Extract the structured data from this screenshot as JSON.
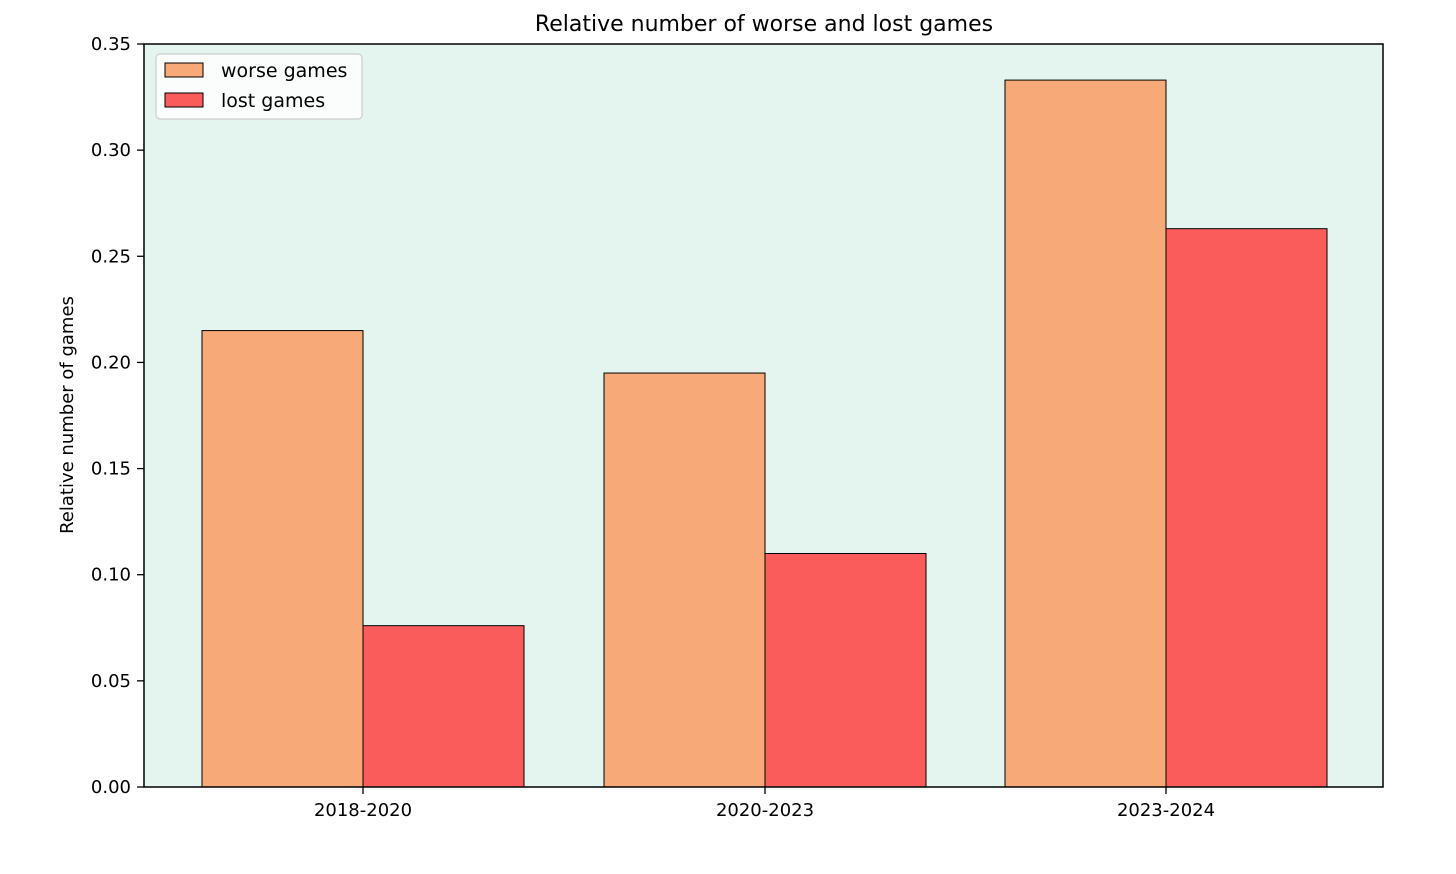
{
  "chart_data": {
    "type": "bar",
    "title": "Relative number of worse and lost games",
    "xlabel": "",
    "ylabel": "Relative number of games",
    "categories": [
      "2018-2020",
      "2020-2023",
      "2023-2024"
    ],
    "series": [
      {
        "name": "worse games",
        "values": [
          0.215,
          0.195,
          0.333
        ],
        "color": "#F7A978"
      },
      {
        "name": "lost games",
        "values": [
          0.076,
          0.11,
          0.263
        ],
        "color": "#FA5C5C"
      }
    ],
    "ylim": [
      0,
      0.35
    ],
    "yticks": [
      "0.00",
      "0.05",
      "0.10",
      "0.15",
      "0.20",
      "0.25",
      "0.30",
      "0.35"
    ],
    "ytick_values": [
      0,
      0.05,
      0.1,
      0.15,
      0.2,
      0.25,
      0.3,
      0.35
    ],
    "grid": false,
    "legend_position": "top-left",
    "plot_background": "#E4F5F0",
    "edge_color": "#000000"
  }
}
